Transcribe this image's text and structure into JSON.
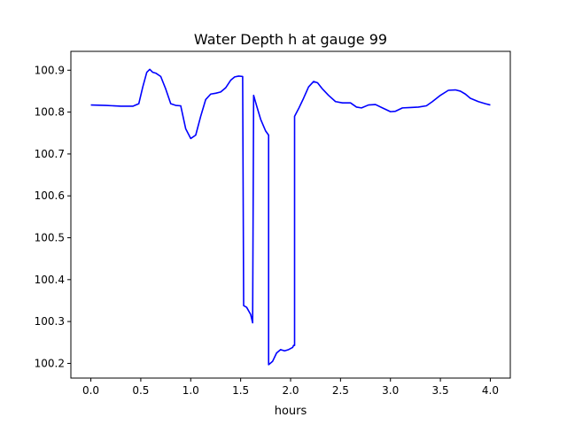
{
  "chart_data": {
    "type": "line",
    "title": "Water Depth h at gauge 99",
    "xlabel": "hours",
    "ylabel": "",
    "xlim": [
      -0.2,
      4.2
    ],
    "ylim": [
      100.165,
      100.945
    ],
    "grid": false,
    "xticks": [
      0.0,
      0.5,
      1.0,
      1.5,
      2.0,
      2.5,
      3.0,
      3.5,
      4.0
    ],
    "xtick_labels": [
      "0.0",
      "0.5",
      "1.0",
      "1.5",
      "2.0",
      "2.5",
      "3.0",
      "3.5",
      "4.0"
    ],
    "yticks": [
      100.2,
      100.3,
      100.4,
      100.5,
      100.6,
      100.7,
      100.8,
      100.9
    ],
    "ytick_labels": [
      "100.2",
      "100.3",
      "100.4",
      "100.5",
      "100.6",
      "100.7",
      "100.8",
      "100.9"
    ],
    "series": [
      {
        "name": "",
        "color": "#0000ff",
        "x": [
          0.0,
          0.15,
          0.3,
          0.42,
          0.48,
          0.52,
          0.56,
          0.59,
          0.62,
          0.65,
          0.7,
          0.75,
          0.8,
          0.85,
          0.9,
          0.95,
          1.0,
          1.05,
          1.1,
          1.15,
          1.2,
          1.25,
          1.3,
          1.35,
          1.4,
          1.44,
          1.48,
          1.52,
          1.53,
          1.56,
          1.6,
          1.62,
          1.63,
          1.66,
          1.7,
          1.75,
          1.78,
          1.78,
          1.82,
          1.86,
          1.9,
          1.94,
          1.98,
          2.02,
          2.03,
          2.04,
          2.04,
          2.08,
          2.13,
          2.18,
          2.23,
          2.27,
          2.32,
          2.38,
          2.45,
          2.52,
          2.6,
          2.66,
          2.71,
          2.78,
          2.85,
          2.92,
          3.0,
          3.05,
          3.12,
          3.2,
          3.28,
          3.36,
          3.42,
          3.5,
          3.58,
          3.65,
          3.7,
          3.75,
          3.8,
          3.88,
          3.95,
          4.0
        ],
        "y": [
          100.817,
          100.816,
          100.814,
          100.814,
          100.82,
          100.86,
          100.895,
          100.902,
          100.895,
          100.893,
          100.885,
          100.855,
          100.82,
          100.816,
          100.815,
          100.76,
          100.737,
          100.745,
          100.79,
          100.83,
          100.843,
          100.845,
          100.848,
          100.858,
          100.876,
          100.884,
          100.886,
          100.885,
          100.338,
          100.334,
          100.317,
          100.297,
          100.84,
          100.815,
          100.783,
          100.755,
          100.745,
          100.197,
          100.205,
          100.225,
          100.233,
          100.23,
          100.233,
          100.238,
          100.243,
          100.243,
          100.79,
          100.808,
          100.833,
          100.86,
          100.873,
          100.87,
          100.855,
          100.84,
          100.825,
          100.822,
          100.822,
          100.812,
          100.81,
          100.817,
          100.818,
          100.81,
          100.801,
          100.802,
          100.81,
          100.811,
          100.812,
          100.815,
          100.825,
          100.84,
          100.852,
          100.853,
          100.85,
          100.843,
          100.833,
          100.825,
          100.82,
          100.817
        ]
      }
    ]
  }
}
